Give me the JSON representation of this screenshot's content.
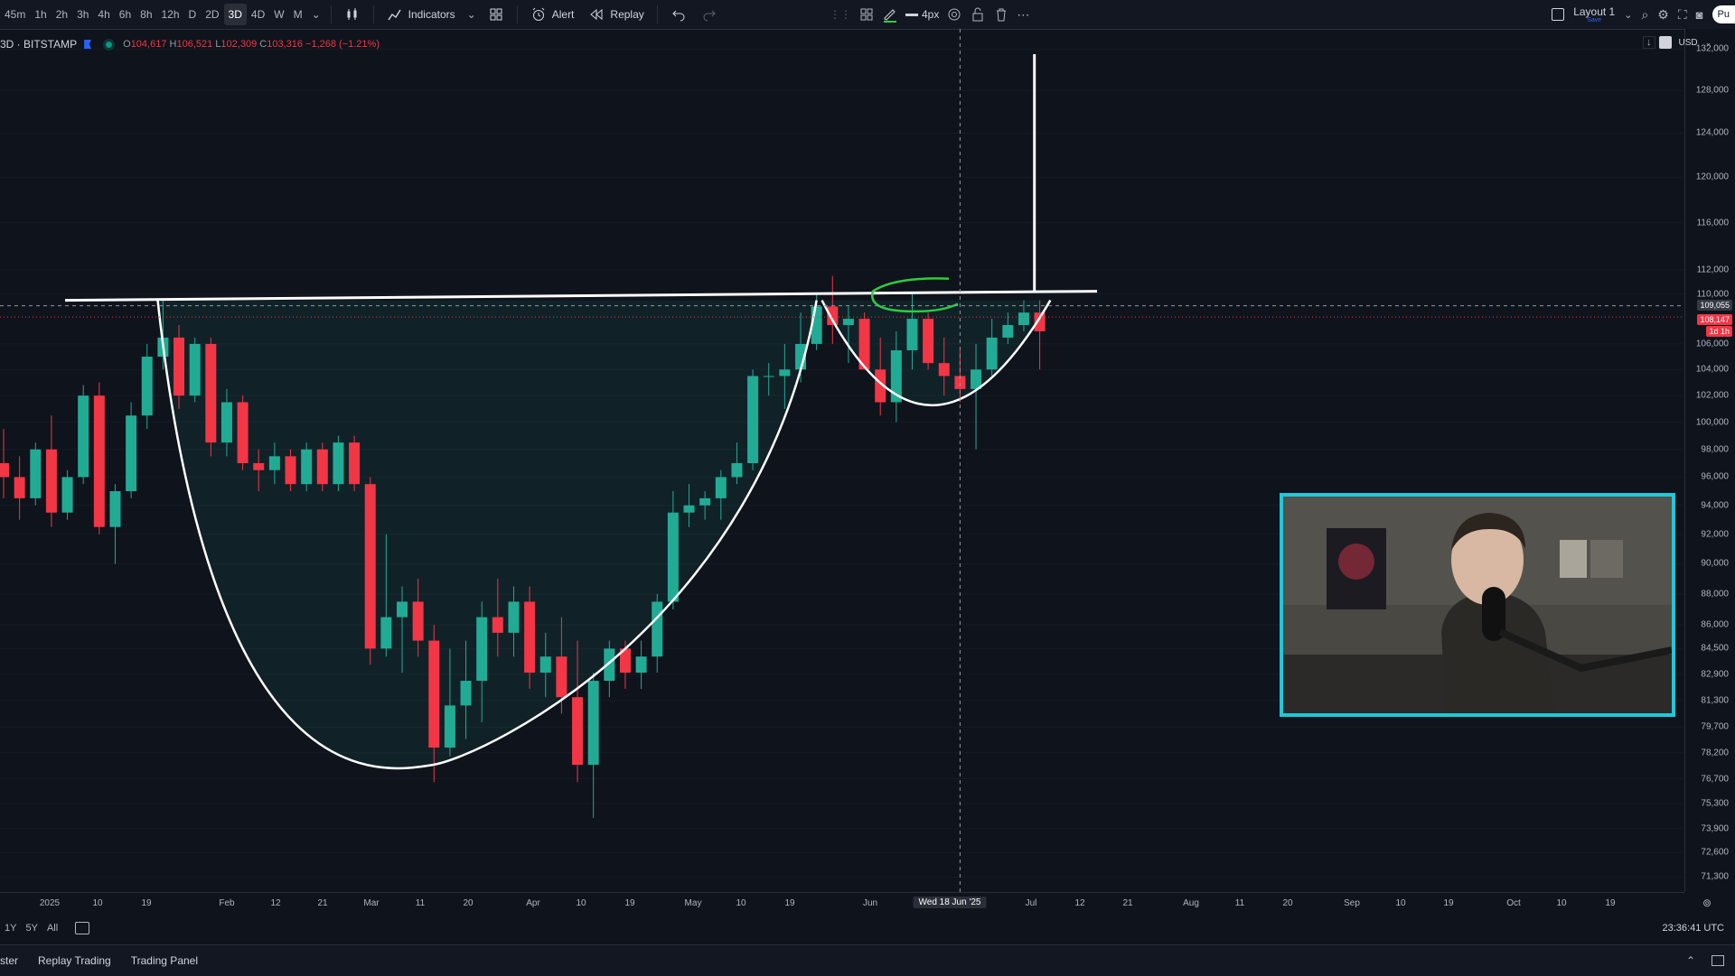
{
  "toolbar": {
    "timeframes": [
      "45m",
      "1h",
      "2h",
      "3h",
      "4h",
      "6h",
      "8h",
      "12h",
      "D",
      "2D",
      "3D",
      "4D",
      "W",
      "M"
    ],
    "active_timeframe": "3D",
    "indicators_label": "Indicators",
    "alert_label": "Alert",
    "replay_label": "Replay",
    "line_width_label": "4px",
    "layout_label": "Layout 1",
    "layout_sub": "Save",
    "publish_label": "Pu"
  },
  "legend": {
    "symbol": "3D · BITSTAMP",
    "open_label": "O",
    "open": "104,617",
    "high_label": "H",
    "high": "106,521",
    "low_label": "L",
    "low": "102,309",
    "close_label": "C",
    "close": "103,316",
    "change": "−1,268 (−1.21%)"
  },
  "currency": "USD",
  "price_axis": [
    "132,000",
    "128,000",
    "124,000",
    "120,000",
    "116,000",
    "112,000",
    "110,000",
    "106,000",
    "104,000",
    "102,000",
    "100,000",
    "98,000",
    "96,000",
    "94,000",
    "92,000",
    "90,000",
    "88,000",
    "86,000",
    "84,500",
    "82,900",
    "81,300",
    "79,700",
    "78,200",
    "76,700",
    "75,300",
    "73,900",
    "72,600",
    "71,300"
  ],
  "price_tags": {
    "crosshair": "109,055",
    "last": "108,147",
    "countdown": "1d 1h"
  },
  "time_axis": [
    "2025",
    "10",
    "19",
    "Feb",
    "12",
    "21",
    "Mar",
    "11",
    "20",
    "Apr",
    "10",
    "19",
    "May",
    "10",
    "19",
    "Jun",
    "Wed 18 Jun '25",
    "Jul",
    "12",
    "21",
    "Aug",
    "11",
    "20",
    "Sep",
    "10",
    "19",
    "Oct",
    "10",
    "19"
  ],
  "range_buttons": [
    "1Y",
    "5Y",
    "All"
  ],
  "clock": "23:36:41 UTC",
  "bottom_tabs": [
    "ster",
    "Replay Trading",
    "Trading Panel"
  ],
  "colors": {
    "up": "#22ab94",
    "down": "#f23645",
    "drawing": "#ffffff",
    "highlight": "#2ecc40",
    "webcam_border": "#20c8d8"
  },
  "chart_data": {
    "type": "candlestick",
    "title": "",
    "x_dates": [
      "2024-12-20",
      "2024-12-23",
      "2024-12-26",
      "2024-12-29",
      "2025-01-01",
      "2025-01-04",
      "2025-01-07",
      "2025-01-10",
      "2025-01-13",
      "2025-01-16",
      "2025-01-19",
      "2025-01-22",
      "2025-01-25",
      "2025-01-28",
      "2025-01-31",
      "2025-02-03",
      "2025-02-06",
      "2025-02-09",
      "2025-02-12",
      "2025-02-15",
      "2025-02-18",
      "2025-02-21",
      "2025-02-24",
      "2025-02-27",
      "2025-03-02",
      "2025-03-05",
      "2025-03-08",
      "2025-03-11",
      "2025-03-14",
      "2025-03-17",
      "2025-03-20",
      "2025-03-23",
      "2025-03-26",
      "2025-03-29",
      "2025-04-01",
      "2025-04-04",
      "2025-04-07",
      "2025-04-10",
      "2025-04-13",
      "2025-04-16",
      "2025-04-19",
      "2025-04-22",
      "2025-04-25",
      "2025-04-28",
      "2025-05-01",
      "2025-05-04",
      "2025-05-07",
      "2025-05-10",
      "2025-05-13",
      "2025-05-16",
      "2025-05-19",
      "2025-05-22",
      "2025-05-25",
      "2025-05-28",
      "2025-05-31",
      "2025-06-03",
      "2025-06-06",
      "2025-06-09",
      "2025-06-12",
      "2025-06-15",
      "2025-06-18",
      "2025-06-21",
      "2025-06-24",
      "2025-06-27",
      "2025-06-30",
      "2025-07-03"
    ],
    "ohlc": [
      [
        97000,
        99500,
        94500,
        96000
      ],
      [
        96000,
        97500,
        93000,
        94500
      ],
      [
        94500,
        98500,
        94000,
        98000
      ],
      [
        98000,
        100500,
        92500,
        93500
      ],
      [
        93500,
        96500,
        93000,
        96000
      ],
      [
        96000,
        102800,
        95500,
        102000
      ],
      [
        102000,
        103000,
        92000,
        92500
      ],
      [
        92500,
        95500,
        90000,
        95000
      ],
      [
        95000,
        101500,
        94500,
        100500
      ],
      [
        100500,
        106000,
        99500,
        105000
      ],
      [
        105000,
        109500,
        104000,
        106500
      ],
      [
        106500,
        107500,
        101000,
        102000
      ],
      [
        102000,
        106500,
        101500,
        106000
      ],
      [
        106000,
        106500,
        97500,
        98500
      ],
      [
        98500,
        102500,
        97500,
        101500
      ],
      [
        101500,
        102000,
        96500,
        97000
      ],
      [
        97000,
        98000,
        95000,
        96500
      ],
      [
        96500,
        98500,
        95500,
        97500
      ],
      [
        97500,
        98000,
        95000,
        95500
      ],
      [
        95500,
        98500,
        95000,
        98000
      ],
      [
        98000,
        98500,
        95000,
        95500
      ],
      [
        95500,
        99000,
        95000,
        98500
      ],
      [
        98500,
        99000,
        95000,
        95500
      ],
      [
        95500,
        96000,
        83500,
        84500
      ],
      [
        84500,
        92000,
        84000,
        86500
      ],
      [
        86500,
        88500,
        83000,
        87500
      ],
      [
        87500,
        89000,
        84000,
        85000
      ],
      [
        85000,
        86000,
        76500,
        78500
      ],
      [
        78500,
        84500,
        78000,
        81000
      ],
      [
        81000,
        85000,
        79000,
        82500
      ],
      [
        82500,
        87500,
        80000,
        86500
      ],
      [
        86500,
        89000,
        84000,
        85500
      ],
      [
        85500,
        88500,
        84000,
        87500
      ],
      [
        87500,
        88500,
        82000,
        83000
      ],
      [
        83000,
        85500,
        81500,
        84000
      ],
      [
        84000,
        86500,
        80500,
        81500
      ],
      [
        81500,
        85000,
        76500,
        77500
      ],
      [
        77500,
        83000,
        74500,
        82500
      ],
      [
        82500,
        85000,
        81500,
        84500
      ],
      [
        84500,
        85000,
        82000,
        83000
      ],
      [
        83000,
        85000,
        82000,
        84000
      ],
      [
        84000,
        88000,
        83000,
        87500
      ],
      [
        87500,
        95000,
        87000,
        93500
      ],
      [
        93500,
        95500,
        92500,
        94000
      ],
      [
        94000,
        95000,
        93000,
        94500
      ],
      [
        94500,
        96500,
        93000,
        96000
      ],
      [
        96000,
        98500,
        95500,
        97000
      ],
      [
        97000,
        104000,
        96500,
        103500
      ],
      [
        103500,
        104500,
        102000,
        103500
      ],
      [
        103500,
        106000,
        101000,
        104000
      ],
      [
        104000,
        108500,
        103000,
        106000
      ],
      [
        106000,
        110000,
        105500,
        109000
      ],
      [
        109000,
        111500,
        106000,
        107500
      ],
      [
        107500,
        109000,
        104500,
        108000
      ],
      [
        108000,
        108500,
        104000,
        104000
      ],
      [
        104000,
        106500,
        100500,
        101500
      ],
      [
        101500,
        107000,
        100000,
        105500
      ],
      [
        105500,
        110000,
        104000,
        108000
      ],
      [
        108000,
        108500,
        104000,
        104500
      ],
      [
        104500,
        106500,
        102000,
        103500
      ],
      [
        103500,
        105500,
        101500,
        102500
      ],
      [
        102500,
        106000,
        98000,
        104000
      ],
      [
        104000,
        108000,
        103500,
        106500
      ],
      [
        106500,
        108500,
        106000,
        107500
      ],
      [
        107500,
        109500,
        107000,
        108500
      ],
      [
        108500,
        109500,
        104000,
        107000
      ]
    ],
    "y_scale": "log",
    "ylim": [
      70500,
      134000
    ],
    "drawings": {
      "neckline_price": 109500,
      "target_price": 131500,
      "cup_bottom_price": 77500,
      "handle_bottom_price": 99500
    },
    "crosshair_price": 109055,
    "crosshair_date": "Wed 18 Jun '25",
    "last_price": 108147
  }
}
